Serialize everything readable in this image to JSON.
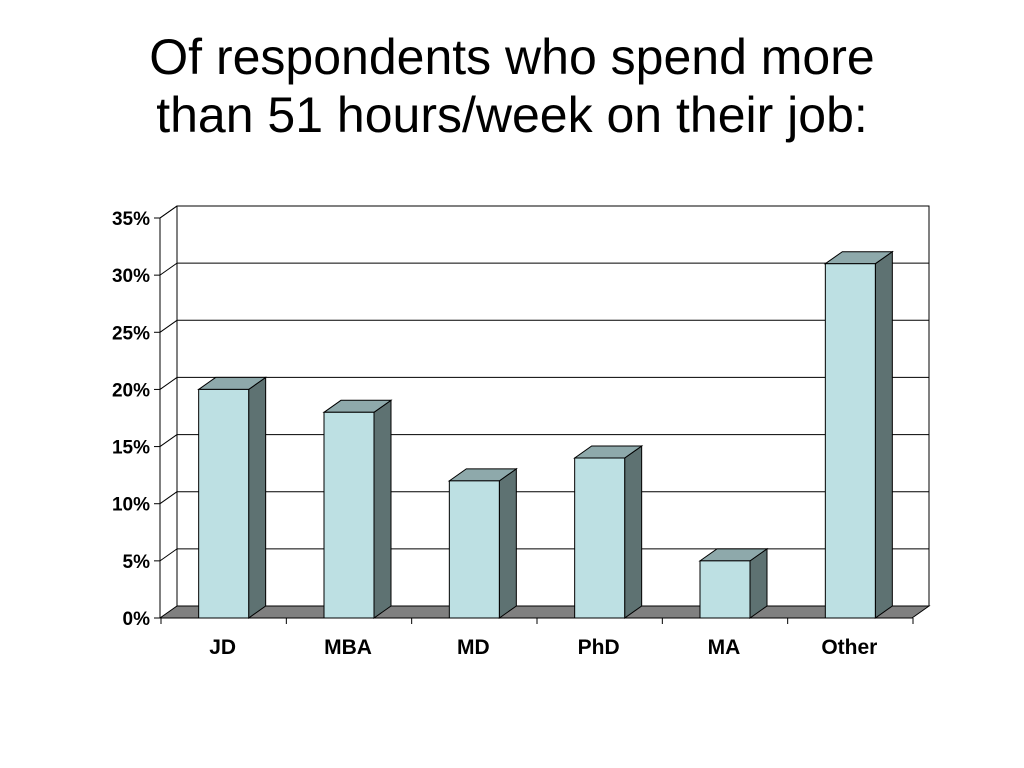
{
  "title": {
    "line1": "Of respondents who spend more",
    "line2": "than 51 hours/week on their job:"
  },
  "chart_data": {
    "type": "bar",
    "categories": [
      "JD",
      "MBA",
      "MD",
      "PhD",
      "MA",
      "Other"
    ],
    "values": [
      20,
      18,
      12,
      14,
      5,
      31
    ],
    "ylim": [
      0,
      35
    ],
    "yticks": [
      0,
      5,
      10,
      15,
      20,
      25,
      30,
      35
    ],
    "ytick_labels": [
      "0%",
      "5%",
      "10%",
      "15%",
      "20%",
      "25%",
      "30%",
      "35%"
    ],
    "grid": true,
    "legend": "none",
    "style": "3d",
    "colors": {
      "bar_front": "#bde0e3",
      "bar_side": "#5e7272",
      "bar_top": "#8ea9ab",
      "floor": "#808080",
      "grid": "#000000"
    }
  }
}
